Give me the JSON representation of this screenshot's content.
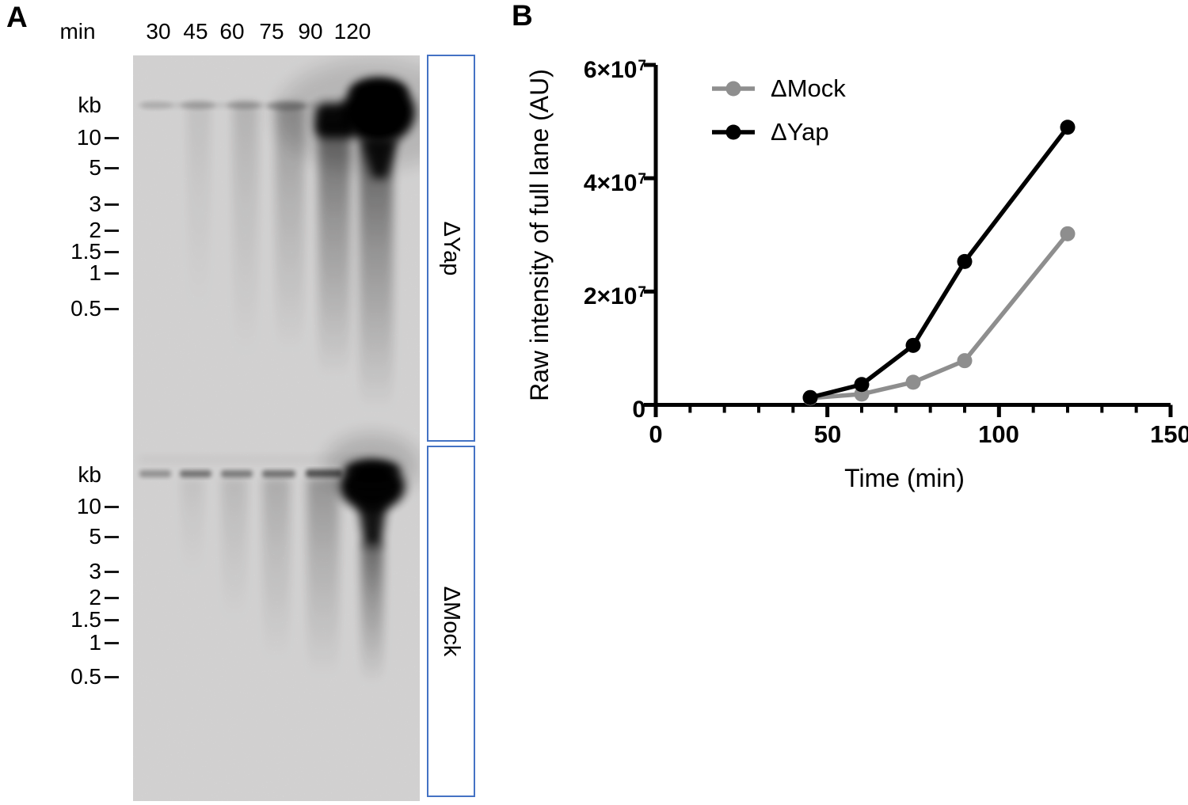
{
  "figure": {
    "panel_a": {
      "label": "A",
      "time_unit_label": "min",
      "lane_times": [
        "30",
        "45",
        "60",
        "75",
        "90",
        "120"
      ],
      "ladder_unit": "kb",
      "ladder_sizes": [
        "10",
        "5",
        "3",
        "2",
        "1.5",
        "1",
        "0.5"
      ],
      "blot_labels": [
        "ΔYap",
        "ΔMock"
      ],
      "box_border_color": "#4472c4"
    },
    "panel_b": {
      "label": "B"
    }
  },
  "chart_data": {
    "type": "line",
    "title": "",
    "xlabel": "Time (min)",
    "ylabel": "Raw intensity of full lane (AU)",
    "x": [
      45,
      60,
      75,
      90,
      120
    ],
    "series": [
      {
        "name": "ΔMock",
        "color": "#8e8e8e",
        "values": [
          1200000,
          1900000,
          4000000,
          7800000,
          30200000
        ]
      },
      {
        "name": "ΔYap",
        "color": "#000000",
        "values": [
          1300000,
          3600000,
          10500000,
          25300000,
          49000000
        ]
      }
    ],
    "xlim": [
      0,
      150
    ],
    "ylim": [
      0,
      60000000
    ],
    "x_major_ticks": [
      0,
      50,
      100,
      150
    ],
    "x_minor_tick_step": 10,
    "x_tick_labels": [
      "0",
      "50",
      "100",
      "150"
    ],
    "y_major_ticks": [
      0,
      20000000,
      40000000,
      60000000
    ],
    "y_tick_labels": [
      {
        "base": "0",
        "exp": ""
      },
      {
        "base": "2×10",
        "exp": "7"
      },
      {
        "base": "4×10",
        "exp": "7"
      },
      {
        "base": "6×10",
        "exp": "7"
      }
    ],
    "grid": false,
    "legend_position": "inside-top-left",
    "axis_color": "#000000"
  }
}
